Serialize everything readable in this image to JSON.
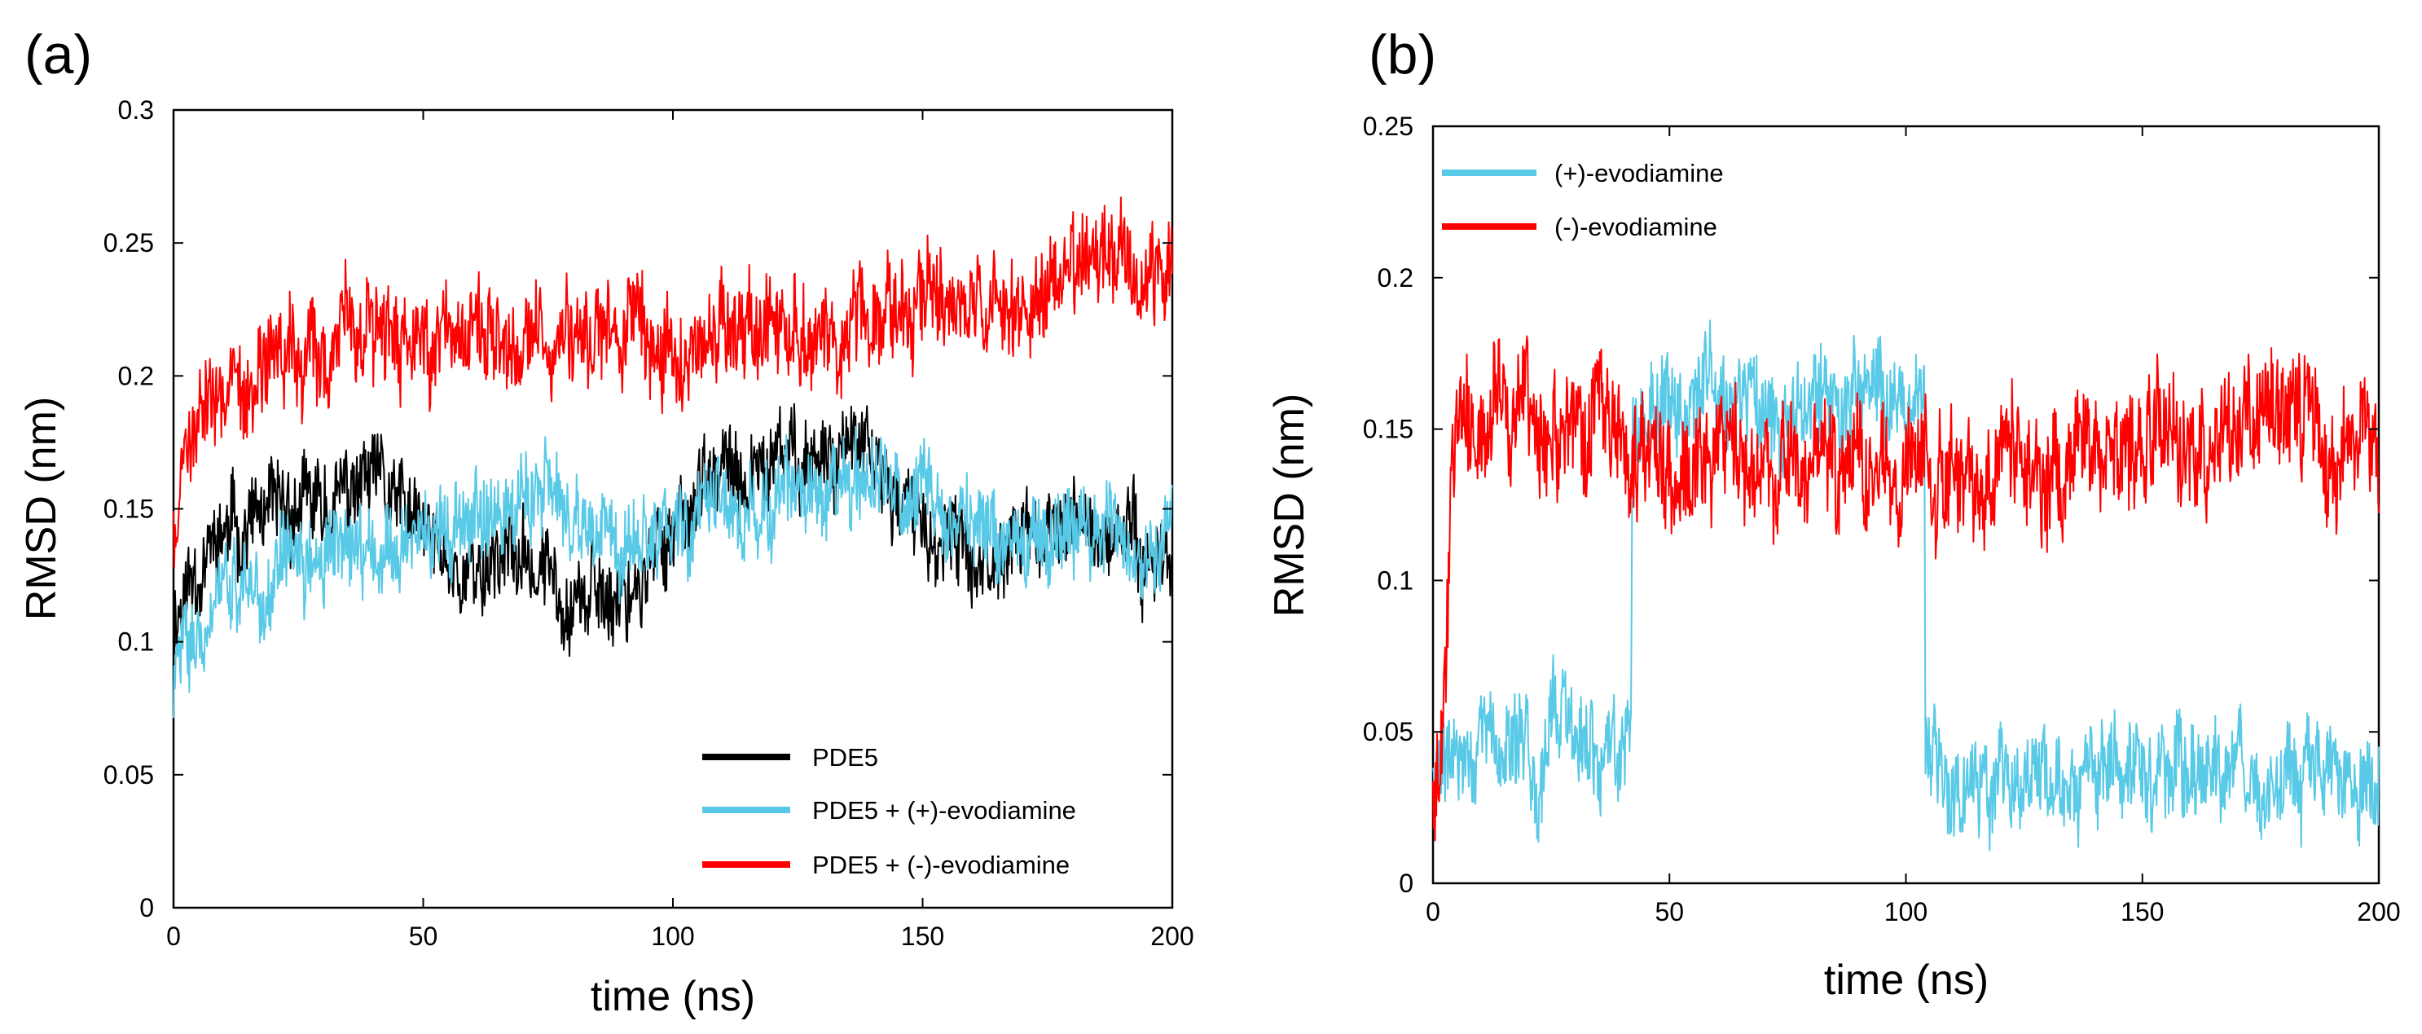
{
  "chart_data": [
    {
      "panel": "(a)",
      "type": "line",
      "xlabel": "time (ns)",
      "ylabel": "RMSD (nm)",
      "xlim": [
        0,
        200
      ],
      "ylim": [
        0,
        0.3
      ],
      "xticks": [
        "0",
        "50",
        "100",
        "150",
        "200"
      ],
      "yticks": [
        "0",
        "0.05",
        "0.1",
        "0.15",
        "0.2",
        "0.25",
        "0.3"
      ],
      "legend_position": "bottom-right",
      "series": [
        {
          "name": "PDE5",
          "color": "#000000",
          "x": [
            0,
            5,
            10,
            15,
            20,
            25,
            30,
            35,
            40,
            45,
            50,
            55,
            60,
            65,
            70,
            75,
            80,
            85,
            90,
            95,
            100,
            105,
            110,
            115,
            120,
            125,
            130,
            135,
            140,
            145,
            150,
            155,
            160,
            165,
            170,
            175,
            180,
            185,
            190,
            195,
            200
          ],
          "y": [
            0.11,
            0.13,
            0.14,
            0.145,
            0.145,
            0.15,
            0.15,
            0.155,
            0.16,
            0.15,
            0.14,
            0.13,
            0.125,
            0.135,
            0.13,
            0.125,
            0.12,
            0.115,
            0.12,
            0.125,
            0.145,
            0.155,
            0.16,
            0.16,
            0.165,
            0.17,
            0.17,
            0.175,
            0.165,
            0.155,
            0.14,
            0.135,
            0.13,
            0.135,
            0.14,
            0.14,
            0.145,
            0.14,
            0.14,
            0.135,
            0.13
          ],
          "noise": 0.012
        },
        {
          "name": "PDE5 + (+)-evodiamine",
          "color": "#58c9e6",
          "x": [
            0,
            5,
            10,
            15,
            20,
            25,
            30,
            35,
            40,
            45,
            50,
            55,
            60,
            65,
            70,
            75,
            80,
            85,
            90,
            95,
            100,
            105,
            110,
            115,
            120,
            125,
            130,
            135,
            140,
            145,
            150,
            155,
            160,
            165,
            170,
            175,
            180,
            185,
            190,
            195,
            200
          ],
          "y": [
            0.085,
            0.11,
            0.115,
            0.12,
            0.125,
            0.128,
            0.13,
            0.135,
            0.135,
            0.14,
            0.142,
            0.145,
            0.15,
            0.152,
            0.155,
            0.15,
            0.145,
            0.135,
            0.135,
            0.14,
            0.145,
            0.148,
            0.15,
            0.15,
            0.15,
            0.152,
            0.155,
            0.155,
            0.155,
            0.157,
            0.158,
            0.15,
            0.145,
            0.14,
            0.14,
            0.14,
            0.14,
            0.14,
            0.14,
            0.135,
            0.14
          ],
          "noise": 0.012
        },
        {
          "name": "PDE5 + (-)-evodiamine",
          "color": "#ff0000",
          "x": [
            0,
            5,
            10,
            15,
            20,
            25,
            30,
            35,
            40,
            45,
            50,
            55,
            60,
            65,
            70,
            75,
            80,
            85,
            90,
            95,
            100,
            105,
            110,
            115,
            120,
            125,
            130,
            135,
            140,
            145,
            150,
            155,
            160,
            165,
            170,
            175,
            180,
            185,
            190,
            195,
            200
          ],
          "y": [
            0.14,
            0.19,
            0.2,
            0.205,
            0.21,
            0.215,
            0.215,
            0.22,
            0.22,
            0.215,
            0.215,
            0.22,
            0.215,
            0.21,
            0.215,
            0.215,
            0.215,
            0.22,
            0.22,
            0.215,
            0.21,
            0.215,
            0.215,
            0.215,
            0.22,
            0.22,
            0.215,
            0.215,
            0.22,
            0.22,
            0.225,
            0.23,
            0.23,
            0.225,
            0.23,
            0.235,
            0.24,
            0.245,
            0.245,
            0.245,
            0.245
          ],
          "noise": 0.014
        }
      ]
    },
    {
      "panel": "(b)",
      "type": "line",
      "xlabel": "time (ns)",
      "ylabel": "RMSD (nm)",
      "xlim": [
        0,
        200
      ],
      "ylim": [
        0,
        0.25
      ],
      "xticks": [
        "0",
        "50",
        "100",
        "150",
        "200"
      ],
      "yticks": [
        "0",
        "0.05",
        "0.1",
        "0.15",
        "0.2",
        "0.25"
      ],
      "legend_position": "top-left",
      "series": [
        {
          "name": "(+)-evodiamine",
          "color": "#58c9e6",
          "x": [
            0,
            2,
            5,
            10,
            15,
            20,
            24,
            26,
            30,
            35,
            40,
            41.9,
            42.1,
            50,
            55,
            60,
            65,
            70,
            75,
            80,
            85,
            90,
            95,
            100,
            103.9,
            104.1,
            110,
            115,
            120,
            130,
            140,
            150,
            160,
            170,
            180,
            190,
            200
          ],
          "y": [
            0.03,
            0.04,
            0.04,
            0.045,
            0.045,
            0.04,
            0.045,
            0.06,
            0.045,
            0.04,
            0.045,
            0.045,
            0.155,
            0.16,
            0.16,
            0.162,
            0.165,
            0.162,
            0.16,
            0.16,
            0.158,
            0.16,
            0.16,
            0.16,
            0.158,
            0.035,
            0.035,
            0.035,
            0.035,
            0.035,
            0.035,
            0.035,
            0.035,
            0.035,
            0.035,
            0.035,
            0.035
          ],
          "noise": 0.012
        },
        {
          "name": "(-)-evodiamine",
          "color": "#ff0000",
          "x": [
            0,
            2,
            4,
            10,
            20,
            30,
            40,
            50,
            60,
            70,
            80,
            85,
            90,
            100,
            110,
            120,
            130,
            140,
            150,
            160,
            170,
            180,
            185,
            190,
            195,
            200
          ],
          "y": [
            0.03,
            0.04,
            0.15,
            0.155,
            0.155,
            0.15,
            0.145,
            0.14,
            0.14,
            0.14,
            0.135,
            0.135,
            0.135,
            0.135,
            0.135,
            0.14,
            0.14,
            0.145,
            0.145,
            0.145,
            0.15,
            0.155,
            0.16,
            0.145,
            0.14,
            0.14
          ],
          "noise": 0.014
        }
      ]
    }
  ]
}
